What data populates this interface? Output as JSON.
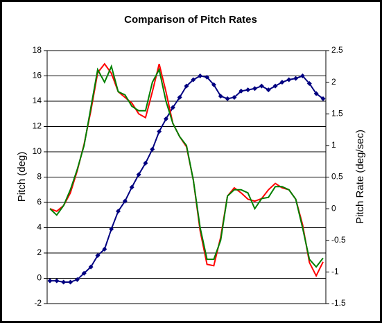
{
  "chart_data": {
    "type": "line",
    "title": "Comparison of Pitch Rates",
    "ylabel": "Pitch (deg)",
    "y2label": "Pitch Rate (deg/sec)",
    "ylim": [
      -2,
      18
    ],
    "yticks": [
      -2,
      0,
      2,
      4,
      6,
      8,
      10,
      12,
      14,
      16,
      18
    ],
    "y2lim": [
      -1.5,
      2.5
    ],
    "y2ticks": [
      -1.5,
      -1,
      -0.5,
      0,
      0.5,
      1,
      1.5,
      2,
      2.5
    ],
    "grid": true,
    "series": [
      {
        "color": "#000080",
        "marker": "diamond",
        "values": [
          -0.2,
          -0.2,
          -0.3,
          -0.3,
          -0.1,
          0.4,
          0.9,
          1.8,
          2.3,
          3.9,
          5.3,
          6.1,
          7.2,
          8.2,
          9.1,
          10.2,
          11.6,
          12.6,
          13.5,
          14.3,
          15.2,
          15.7,
          16.0,
          15.9,
          15.3,
          14.4,
          14.2,
          14.3,
          14.8,
          14.9,
          15.0,
          15.2,
          14.9,
          15.2,
          15.5,
          15.7,
          15.8,
          16.0,
          15.4,
          14.6,
          14.2
        ]
      },
      {
        "color": "#ff0000",
        "axis": "y2",
        "values": [
          0.0,
          -0.04,
          0.05,
          0.25,
          0.6,
          1.02,
          1.55,
          2.15,
          2.29,
          2.14,
          1.85,
          1.76,
          1.67,
          1.5,
          1.44,
          1.85,
          2.29,
          1.85,
          1.35,
          1.14,
          0.98,
          0.45,
          -0.35,
          -0.88,
          -0.9,
          -0.45,
          0.2,
          0.33,
          0.25,
          0.15,
          0.12,
          0.16,
          0.3,
          0.4,
          0.33,
          0.3,
          0.15,
          -0.25,
          -0.85,
          -1.06,
          -0.84
        ]
      },
      {
        "color": "#008000",
        "axis": "y2",
        "values": [
          0.0,
          -0.1,
          0.05,
          0.3,
          0.62,
          1.0,
          1.6,
          2.2,
          2.0,
          2.25,
          1.85,
          1.8,
          1.62,
          1.55,
          1.55,
          2.0,
          2.2,
          1.7,
          1.35,
          1.14,
          1.0,
          0.45,
          -0.3,
          -0.8,
          -0.8,
          -0.5,
          0.2,
          0.3,
          0.3,
          0.25,
          0.0,
          0.16,
          0.18,
          0.35,
          0.35,
          0.3,
          0.15,
          -0.3,
          -0.8,
          -0.92,
          -0.78
        ]
      }
    ]
  }
}
